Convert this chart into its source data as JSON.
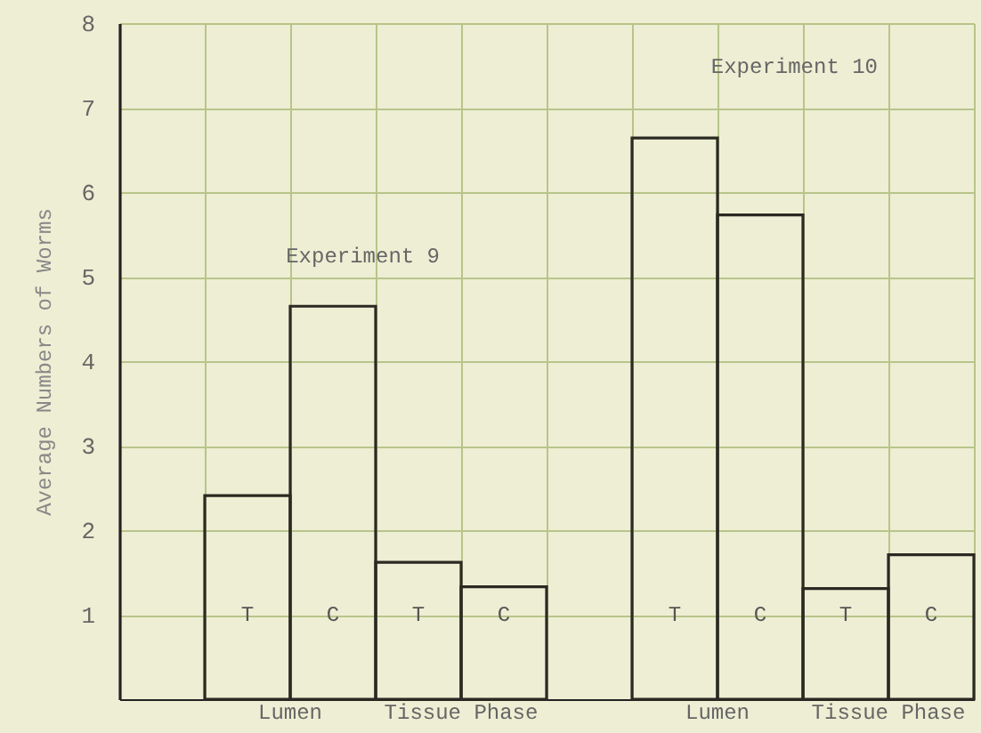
{
  "chart_data": {
    "type": "bar",
    "ylabel": "Average Numbers of Worms",
    "categories": [
      "T",
      "C",
      "T",
      "C",
      "T",
      "C",
      "T",
      "C"
    ],
    "values": [
      2.41,
      4.65,
      1.62,
      1.33,
      6.64,
      5.73,
      1.31,
      1.71
    ],
    "color": "#2a2a22",
    "ylim": [
      0,
      8
    ],
    "yticks": [
      1,
      2,
      3,
      4,
      5,
      6,
      7,
      8
    ],
    "grid": true,
    "annotations": [
      "Experiment 9",
      "Experiment 10",
      "Lumen",
      "Tissue Phase",
      "Lumen",
      "Tissue Phase"
    ]
  }
}
